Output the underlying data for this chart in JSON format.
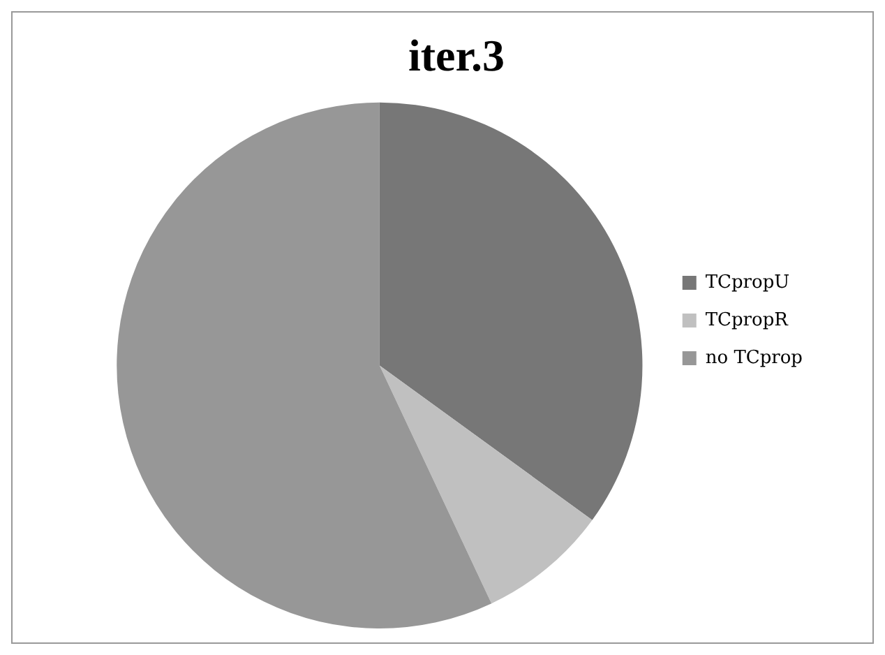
{
  "chart_data": {
    "type": "pie",
    "title": "iter.3",
    "categories": [
      "TCpropU",
      "TCpropR",
      "no TCprop"
    ],
    "values": [
      35,
      8,
      57
    ],
    "colors": [
      "#777777",
      "#c0c0c0",
      "#979797"
    ],
    "legend": "right"
  }
}
